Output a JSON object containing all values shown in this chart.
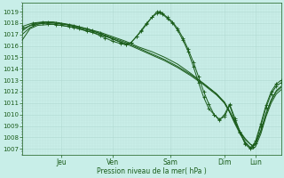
{
  "bg_color": "#c8eee8",
  "grid_color_major": "#b0d8d0",
  "grid_color_minor": "#c0e4dc",
  "line_color": "#1a5c1a",
  "ylabel": "Pression niveau de la mer( hPa )",
  "ylim": [
    1006.5,
    1019.8
  ],
  "yticks": [
    1007,
    1008,
    1009,
    1010,
    1011,
    1012,
    1013,
    1014,
    1015,
    1016,
    1017,
    1018,
    1019
  ],
  "xlabels": [
    "Jeu",
    "Ven",
    "Sam",
    "Dim",
    "Lun"
  ],
  "xlim": [
    0,
    100
  ],
  "x_tick_positions": [
    15,
    35,
    57,
    78,
    90
  ],
  "series": [
    {
      "points": [
        [
          0,
          1016.5
        ],
        [
          3,
          1017.5
        ],
        [
          6,
          1017.8
        ],
        [
          9,
          1017.85
        ],
        [
          12,
          1017.9
        ],
        [
          15,
          1017.8
        ],
        [
          20,
          1017.6
        ],
        [
          25,
          1017.3
        ],
        [
          30,
          1017.0
        ],
        [
          35,
          1016.6
        ],
        [
          40,
          1016.2
        ],
        [
          45,
          1015.7
        ],
        [
          50,
          1015.2
        ],
        [
          55,
          1014.7
        ],
        [
          60,
          1014.1
        ],
        [
          65,
          1013.4
        ],
        [
          70,
          1012.6
        ],
        [
          75,
          1011.7
        ],
        [
          78,
          1011.0
        ],
        [
          80,
          1010.2
        ],
        [
          82,
          1009.3
        ],
        [
          84,
          1008.5
        ],
        [
          86,
          1007.8
        ],
        [
          88,
          1007.4
        ],
        [
          89,
          1007.3
        ],
        [
          90,
          1007.5
        ],
        [
          92,
          1008.5
        ],
        [
          94,
          1010.0
        ],
        [
          96,
          1011.2
        ],
        [
          98,
          1012.0
        ],
        [
          100,
          1012.4
        ]
      ],
      "markers": false,
      "lw": 0.7
    },
    {
      "points": [
        [
          0,
          1017.0
        ],
        [
          3,
          1017.6
        ],
        [
          6,
          1017.9
        ],
        [
          9,
          1018.0
        ],
        [
          12,
          1018.0
        ],
        [
          15,
          1017.95
        ],
        [
          20,
          1017.7
        ],
        [
          25,
          1017.4
        ],
        [
          30,
          1017.1
        ],
        [
          35,
          1016.7
        ],
        [
          40,
          1016.3
        ],
        [
          45,
          1015.8
        ],
        [
          50,
          1015.3
        ],
        [
          55,
          1014.8
        ],
        [
          60,
          1014.2
        ],
        [
          65,
          1013.5
        ],
        [
          70,
          1012.7
        ],
        [
          75,
          1011.8
        ],
        [
          78,
          1011.1
        ],
        [
          80,
          1010.3
        ],
        [
          82,
          1009.4
        ],
        [
          84,
          1008.5
        ],
        [
          86,
          1007.9
        ],
        [
          88,
          1007.4
        ],
        [
          89,
          1007.2
        ],
        [
          90,
          1007.4
        ],
        [
          92,
          1008.6
        ],
        [
          94,
          1010.1
        ],
        [
          96,
          1011.3
        ],
        [
          98,
          1012.1
        ],
        [
          100,
          1012.5
        ]
      ],
      "markers": false,
      "lw": 0.7
    },
    {
      "points": [
        [
          0,
          1017.3
        ],
        [
          3,
          1017.8
        ],
        [
          6,
          1018.0
        ],
        [
          9,
          1018.1
        ],
        [
          12,
          1018.1
        ],
        [
          15,
          1018.0
        ],
        [
          20,
          1017.8
        ],
        [
          25,
          1017.5
        ],
        [
          30,
          1017.2
        ],
        [
          35,
          1016.8
        ],
        [
          40,
          1016.4
        ],
        [
          45,
          1015.9
        ],
        [
          50,
          1015.5
        ],
        [
          55,
          1015.0
        ],
        [
          60,
          1014.4
        ],
        [
          65,
          1013.6
        ],
        [
          70,
          1012.7
        ],
        [
          75,
          1011.8
        ],
        [
          78,
          1011.0
        ],
        [
          80,
          1010.2
        ],
        [
          82,
          1009.2
        ],
        [
          84,
          1008.3
        ],
        [
          86,
          1007.6
        ],
        [
          88,
          1007.1
        ],
        [
          89,
          1007.0
        ],
        [
          90,
          1007.2
        ],
        [
          92,
          1008.3
        ],
        [
          94,
          1009.8
        ],
        [
          96,
          1011.0
        ],
        [
          98,
          1011.8
        ],
        [
          100,
          1012.2
        ]
      ],
      "markers": false,
      "lw": 0.7
    },
    {
      "points": [
        [
          0,
          1017.5
        ],
        [
          4,
          1017.85
        ],
        [
          8,
          1018.0
        ],
        [
          10,
          1017.95
        ],
        [
          13,
          1017.85
        ],
        [
          15,
          1017.8
        ],
        [
          18,
          1017.7
        ],
        [
          20,
          1017.6
        ],
        [
          22,
          1017.5
        ],
        [
          25,
          1017.3
        ],
        [
          27,
          1017.2
        ],
        [
          30,
          1016.9
        ],
        [
          32,
          1016.7
        ],
        [
          35,
          1016.4
        ],
        [
          38,
          1016.2
        ],
        [
          40,
          1016.1
        ],
        [
          42,
          1016.3
        ],
        [
          44,
          1016.8
        ],
        [
          46,
          1017.3
        ],
        [
          48,
          1017.9
        ],
        [
          50,
          1018.5
        ],
        [
          52,
          1019.0
        ],
        [
          53,
          1019.0
        ],
        [
          54,
          1018.85
        ],
        [
          56,
          1018.5
        ],
        [
          58,
          1018.1
        ],
        [
          60,
          1017.5
        ],
        [
          62,
          1016.7
        ],
        [
          64,
          1015.7
        ],
        [
          66,
          1014.6
        ],
        [
          68,
          1013.3
        ],
        [
          70,
          1012.0
        ],
        [
          72,
          1010.9
        ],
        [
          74,
          1010.0
        ],
        [
          76,
          1009.6
        ],
        [
          78,
          1009.8
        ],
        [
          80,
          1010.8
        ],
        [
          82,
          1009.5
        ],
        [
          84,
          1008.4
        ],
        [
          86,
          1007.4
        ],
        [
          88,
          1007.0
        ],
        [
          89,
          1007.2
        ],
        [
          90,
          1007.5
        ],
        [
          92,
          1009.0
        ],
        [
          94,
          1010.6
        ],
        [
          96,
          1011.8
        ],
        [
          98,
          1012.5
        ],
        [
          100,
          1012.8
        ]
      ],
      "markers": true,
      "lw": 0.7
    },
    {
      "points": [
        [
          0,
          1017.7
        ],
        [
          4,
          1018.0
        ],
        [
          8,
          1018.1
        ],
        [
          10,
          1018.05
        ],
        [
          13,
          1018.0
        ],
        [
          15,
          1017.95
        ],
        [
          18,
          1017.85
        ],
        [
          20,
          1017.75
        ],
        [
          22,
          1017.65
        ],
        [
          25,
          1017.5
        ],
        [
          27,
          1017.35
        ],
        [
          30,
          1017.1
        ],
        [
          32,
          1016.9
        ],
        [
          35,
          1016.6
        ],
        [
          38,
          1016.3
        ],
        [
          40,
          1016.15
        ],
        [
          42,
          1016.3
        ],
        [
          44,
          1016.8
        ],
        [
          46,
          1017.4
        ],
        [
          48,
          1018.0
        ],
        [
          50,
          1018.5
        ],
        [
          52,
          1018.85
        ],
        [
          53,
          1018.9
        ],
        [
          54,
          1018.8
        ],
        [
          56,
          1018.4
        ],
        [
          58,
          1018.0
        ],
        [
          60,
          1017.35
        ],
        [
          62,
          1016.5
        ],
        [
          64,
          1015.5
        ],
        [
          66,
          1014.2
        ],
        [
          68,
          1012.8
        ],
        [
          70,
          1011.5
        ],
        [
          72,
          1010.5
        ],
        [
          74,
          1010.0
        ],
        [
          76,
          1009.5
        ],
        [
          78,
          1010.0
        ],
        [
          80,
          1010.9
        ],
        [
          82,
          1009.7
        ],
        [
          84,
          1008.5
        ],
        [
          86,
          1007.5
        ],
        [
          88,
          1007.1
        ],
        [
          89,
          1007.3
        ],
        [
          90,
          1007.7
        ],
        [
          92,
          1009.2
        ],
        [
          94,
          1010.8
        ],
        [
          96,
          1012.0
        ],
        [
          98,
          1012.7
        ],
        [
          100,
          1013.0
        ]
      ],
      "markers": true,
      "lw": 0.7
    }
  ]
}
